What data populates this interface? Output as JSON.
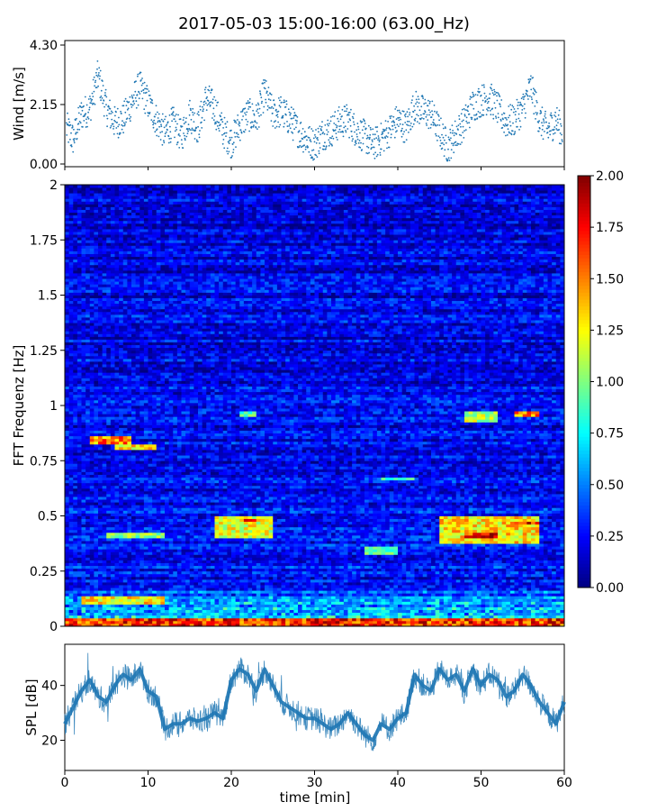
{
  "title": "2017-05-03 15:00-16:00 (63.00_Hz)",
  "chart_data": [
    {
      "type": "scatter",
      "panel": "wind",
      "ylabel": "Wind [m/s]",
      "yticks": [
        "0.00",
        "2.15",
        "4.30"
      ],
      "ylim": [
        0,
        4.3
      ],
      "xlim": [
        0,
        60
      ],
      "color": "#1f77b4",
      "series": [
        {
          "x": [
            0,
            1,
            2,
            3,
            4,
            5,
            6,
            7,
            8,
            9,
            10,
            11,
            12,
            13,
            14,
            15,
            16,
            17,
            18,
            19,
            20,
            21,
            22,
            23,
            24,
            25,
            26,
            27,
            28,
            29,
            30,
            31,
            32,
            33,
            34,
            35,
            36,
            37,
            38,
            39,
            40,
            41,
            42,
            43,
            44,
            45,
            46,
            47,
            48,
            49,
            50,
            51,
            52,
            53,
            54,
            55,
            56,
            57,
            58,
            59,
            60
          ],
          "values": [
            1.4,
            0.9,
            1.8,
            2.0,
            3.2,
            2.0,
            1.5,
            1.6,
            2.2,
            2.8,
            2.2,
            1.6,
            1.1,
            1.5,
            1.0,
            1.8,
            1.3,
            2.4,
            2.0,
            1.2,
            0.8,
            1.4,
            1.8,
            1.6,
            2.6,
            1.8,
            1.9,
            1.6,
            1.2,
            0.9,
            0.7,
            1.1,
            1.2,
            1.5,
            1.6,
            1.2,
            1.0,
            0.7,
            0.9,
            1.2,
            1.6,
            1.3,
            2.1,
            1.9,
            1.8,
            1.2,
            0.6,
            1.1,
            1.5,
            2.1,
            2.3,
            2.4,
            2.0,
            1.5,
            1.6,
            2.0,
            2.8,
            1.6,
            1.2,
            1.6,
            1.0
          ]
        }
      ]
    },
    {
      "type": "heatmap",
      "panel": "spectrogram",
      "ylabel": "FFT Frequenz [Hz]",
      "yticks": [
        "0",
        "0.25",
        "0.5",
        "0.75",
        "1",
        "1.25",
        "1.5",
        "1.75",
        "2"
      ],
      "ylim": [
        0,
        2
      ],
      "xlim": [
        0,
        60
      ],
      "colorscale": "jet",
      "colorbar": {
        "range": [
          0,
          2
        ],
        "ticks": [
          "0.00",
          "0.25",
          "0.50",
          "0.75",
          "1.00",
          "1.25",
          "1.50",
          "1.75",
          "2.00"
        ]
      },
      "hotspots": [
        {
          "t": [
            3,
            8
          ],
          "f": [
            0.82,
            0.86
          ],
          "level": 1.6
        },
        {
          "t": [
            6,
            11
          ],
          "f": [
            0.8,
            0.83
          ],
          "level": 1.4
        },
        {
          "t": [
            5,
            12
          ],
          "f": [
            0.4,
            0.42
          ],
          "level": 1.1
        },
        {
          "t": [
            18,
            25
          ],
          "f": [
            0.4,
            0.5
          ],
          "level": 1.3
        },
        {
          "t": [
            21,
            24
          ],
          "f": [
            0.47,
            0.49
          ],
          "level": 1.7
        },
        {
          "t": [
            21,
            23
          ],
          "f": [
            0.95,
            0.97
          ],
          "level": 1.0
        },
        {
          "t": [
            36,
            40
          ],
          "f": [
            0.32,
            0.36
          ],
          "level": 1.0
        },
        {
          "t": [
            38,
            42
          ],
          "f": [
            0.66,
            0.68
          ],
          "level": 0.9
        },
        {
          "t": [
            45,
            57
          ],
          "f": [
            0.38,
            0.5
          ],
          "level": 1.4
        },
        {
          "t": [
            48,
            52
          ],
          "f": [
            0.4,
            0.42
          ],
          "level": 1.9
        },
        {
          "t": [
            54,
            57
          ],
          "f": [
            0.46,
            0.48
          ],
          "level": 1.8
        },
        {
          "t": [
            54,
            57
          ],
          "f": [
            0.95,
            0.97
          ],
          "level": 1.7
        },
        {
          "t": [
            48,
            52
          ],
          "f": [
            0.92,
            0.97
          ],
          "level": 1.2
        },
        {
          "t": [
            2,
            12
          ],
          "f": [
            0.1,
            0.14
          ],
          "level": 1.4
        },
        {
          "t": [
            0,
            60
          ],
          "f": [
            0,
            0.04
          ],
          "level": 1.8
        }
      ]
    },
    {
      "type": "line",
      "panel": "spl",
      "ylabel": "SPL [dB]",
      "xlabel": "time [min]",
      "yticks": [
        "20",
        "40"
      ],
      "xticks": [
        "0",
        "10",
        "20",
        "30",
        "40",
        "50",
        "60"
      ],
      "ylim": [
        9,
        55
      ],
      "xlim": [
        0,
        60
      ],
      "color": "#1f77b4",
      "series": [
        {
          "x": [
            0,
            1,
            2,
            3,
            4,
            5,
            6,
            7,
            8,
            9,
            10,
            11,
            12,
            13,
            14,
            15,
            16,
            17,
            18,
            19,
            20,
            21,
            22,
            23,
            24,
            25,
            26,
            27,
            28,
            29,
            30,
            31,
            32,
            33,
            34,
            35,
            36,
            37,
            38,
            39,
            40,
            41,
            42,
            43,
            44,
            45,
            46,
            47,
            48,
            49,
            50,
            51,
            52,
            53,
            54,
            55,
            56,
            57,
            58,
            59,
            60
          ],
          "values": [
            26,
            32,
            38,
            42,
            36,
            34,
            40,
            44,
            42,
            46,
            38,
            36,
            24,
            26,
            26,
            28,
            27,
            28,
            30,
            28,
            42,
            46,
            44,
            38,
            46,
            40,
            34,
            32,
            30,
            28,
            28,
            26,
            24,
            26,
            30,
            26,
            22,
            20,
            26,
            24,
            28,
            30,
            44,
            40,
            38,
            46,
            42,
            44,
            38,
            46,
            40,
            44,
            42,
            36,
            38,
            44,
            40,
            34,
            30,
            26,
            34
          ]
        }
      ]
    }
  ]
}
